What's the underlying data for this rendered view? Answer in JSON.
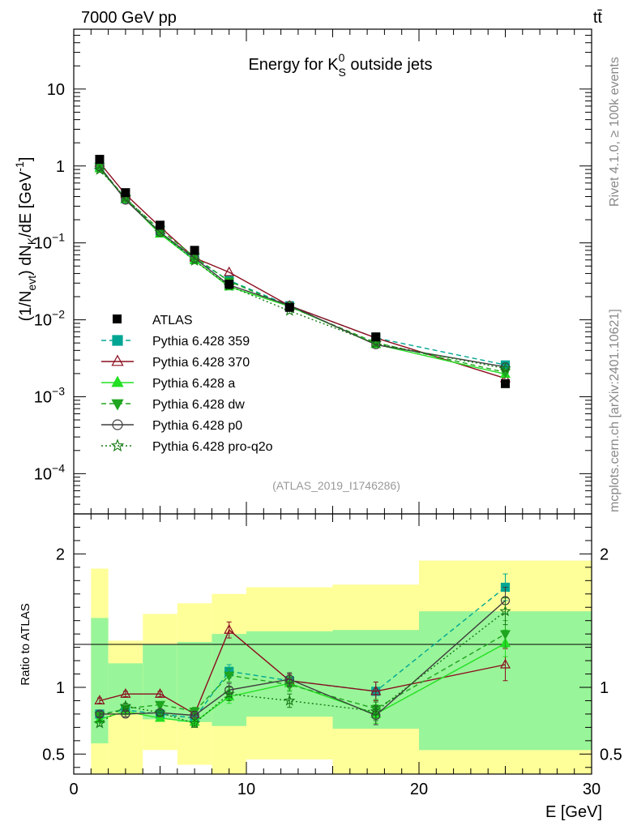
{
  "header": {
    "left": "7000 GeV pp",
    "right": "tt̄"
  },
  "side_labels": {
    "rivet": "Rivet 4.1.0, ≥ 100k events",
    "mcplots": "mcplots.cern.ch [arXiv:2401.10621]"
  },
  "chart_data": {
    "type": "line",
    "title": "Energy for K_S^0 outside jets",
    "analysis_tag": "(ATLAS_2019_I1746286)",
    "xlabel": "E [GeV]",
    "ylabel": "(1/N_evt) dN_K/dE [GeV^-1]",
    "ratio_ylabel": "Ratio to ATLAS",
    "xlim": [
      0,
      30
    ],
    "ylim": [
      3e-05,
      60
    ],
    "ratio_ylim": [
      0.35,
      2.3
    ],
    "yscale": "log",
    "x_ticks": [
      "0",
      "10",
      "20",
      "30"
    ],
    "y_ticks": [
      "10^-4",
      "10^-3",
      "10^-2",
      "10^-1",
      "1",
      "10"
    ],
    "ratio_ticks": [
      "0.5",
      "1",
      "2"
    ],
    "bins": [
      [
        1,
        2
      ],
      [
        2,
        4
      ],
      [
        4,
        6
      ],
      [
        6,
        8
      ],
      [
        8,
        10
      ],
      [
        10,
        15
      ],
      [
        15,
        20
      ],
      [
        20,
        30
      ]
    ],
    "x": [
      1.5,
      3,
      5,
      7,
      9,
      12.5,
      17.5,
      25
    ],
    "data": {
      "name": "ATLAS",
      "values": [
        1.22,
        0.45,
        0.17,
        0.08,
        0.029,
        0.0145,
        0.006,
        0.00148
      ]
    },
    "bands": {
      "inner": [
        [
          0.58,
          1.52
        ],
        [
          0.81,
          1.18
        ],
        [
          0.76,
          1.32
        ],
        [
          0.74,
          1.34
        ],
        [
          0.71,
          1.4
        ],
        [
          0.78,
          1.42
        ],
        [
          0.69,
          1.43
        ],
        [
          0.53,
          1.57
        ]
      ],
      "outer": [
        [
          0.35,
          1.89
        ],
        [
          0.35,
          1.35
        ],
        [
          0.53,
          1.55
        ],
        [
          0.42,
          1.63
        ],
        [
          0.35,
          1.7
        ],
        [
          0.46,
          1.75
        ],
        [
          0.35,
          1.77
        ],
        [
          0.35,
          1.95
        ]
      ]
    },
    "series": [
      {
        "name": "Pythia 6.428 359",
        "color": "#00a693",
        "dash": "6,4",
        "marker": "square",
        "fill": true,
        "ratio": [
          0.8,
          0.83,
          0.8,
          0.77,
          1.12,
          1.05,
          0.97,
          1.75
        ],
        "ratio_err": [
          0.02,
          0.02,
          0.02,
          0.03,
          0.05,
          0.05,
          0.07,
          0.1
        ]
      },
      {
        "name": "Pythia 6.428 370",
        "color": "#8b0d1f",
        "dash": "",
        "marker": "triangle",
        "fill": false,
        "ratio": [
          0.9,
          0.95,
          0.95,
          0.8,
          1.43,
          1.05,
          0.97,
          1.17
        ],
        "ratio_err": [
          0.02,
          0.02,
          0.02,
          0.03,
          0.06,
          0.05,
          0.07,
          0.12
        ]
      },
      {
        "name": "Pythia 6.428 a",
        "color": "#22e022",
        "dash": "",
        "marker": "triangle",
        "fill": true,
        "ratio": [
          0.76,
          0.82,
          0.77,
          0.74,
          0.93,
          1.03,
          0.8,
          1.33
        ],
        "ratio_err": [
          0.02,
          0.02,
          0.02,
          0.03,
          0.05,
          0.05,
          0.07,
          0.1
        ]
      },
      {
        "name": "Pythia 6.428 dw",
        "color": "#1fa51f",
        "dash": "6,4",
        "marker": "triangle-down",
        "fill": true,
        "ratio": [
          0.79,
          0.84,
          0.87,
          0.82,
          1.09,
          1.02,
          0.84,
          1.4
        ],
        "ratio_err": [
          0.02,
          0.02,
          0.02,
          0.03,
          0.05,
          0.05,
          0.07,
          0.1
        ]
      },
      {
        "name": "Pythia 6.428 p0",
        "color": "#3d3d3d",
        "dash": "",
        "marker": "circle",
        "fill": false,
        "ratio": [
          0.8,
          0.8,
          0.81,
          0.79,
          0.98,
          1.06,
          0.79,
          1.65
        ],
        "ratio_err": [
          0.02,
          0.02,
          0.02,
          0.03,
          0.05,
          0.05,
          0.07,
          0.1
        ]
      },
      {
        "name": "Pythia 6.428 pro-q2o",
        "color": "#157a15",
        "dash": "2,3",
        "marker": "star",
        "fill": false,
        "ratio": [
          0.73,
          0.86,
          0.81,
          0.73,
          0.95,
          0.9,
          0.82,
          1.57
        ],
        "ratio_err": [
          0.02,
          0.02,
          0.02,
          0.03,
          0.05,
          0.05,
          0.07,
          0.1
        ]
      }
    ]
  }
}
